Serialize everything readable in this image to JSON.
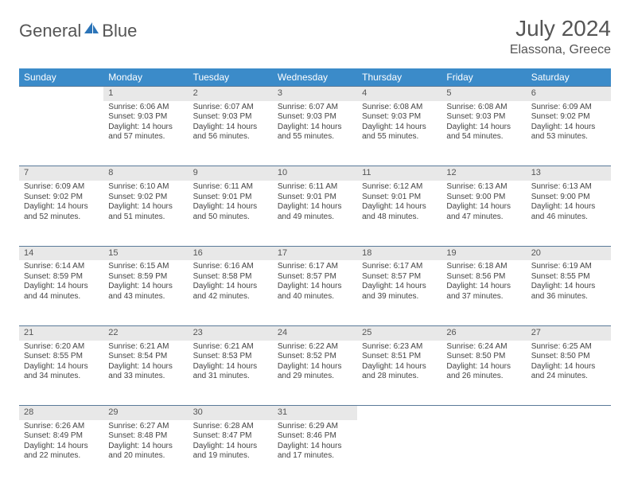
{
  "logo": {
    "text1": "General",
    "text2": "Blue"
  },
  "title": "July 2024",
  "location": "Elassona, Greece",
  "colors": {
    "header_bg": "#3b8bc9",
    "header_fg": "#ffffff",
    "daynum_bg": "#e8e8e8",
    "rule": "#5a7a99",
    "logo_accent": "#2b74b8"
  },
  "weekdays": [
    "Sunday",
    "Monday",
    "Tuesday",
    "Wednesday",
    "Thursday",
    "Friday",
    "Saturday"
  ],
  "weeks": [
    [
      null,
      {
        "n": "1",
        "sr": "6:06 AM",
        "ss": "9:03 PM",
        "dl": "14 hours and 57 minutes."
      },
      {
        "n": "2",
        "sr": "6:07 AM",
        "ss": "9:03 PM",
        "dl": "14 hours and 56 minutes."
      },
      {
        "n": "3",
        "sr": "6:07 AM",
        "ss": "9:03 PM",
        "dl": "14 hours and 55 minutes."
      },
      {
        "n": "4",
        "sr": "6:08 AM",
        "ss": "9:03 PM",
        "dl": "14 hours and 55 minutes."
      },
      {
        "n": "5",
        "sr": "6:08 AM",
        "ss": "9:03 PM",
        "dl": "14 hours and 54 minutes."
      },
      {
        "n": "6",
        "sr": "6:09 AM",
        "ss": "9:02 PM",
        "dl": "14 hours and 53 minutes."
      }
    ],
    [
      {
        "n": "7",
        "sr": "6:09 AM",
        "ss": "9:02 PM",
        "dl": "14 hours and 52 minutes."
      },
      {
        "n": "8",
        "sr": "6:10 AM",
        "ss": "9:02 PM",
        "dl": "14 hours and 51 minutes."
      },
      {
        "n": "9",
        "sr": "6:11 AM",
        "ss": "9:01 PM",
        "dl": "14 hours and 50 minutes."
      },
      {
        "n": "10",
        "sr": "6:11 AM",
        "ss": "9:01 PM",
        "dl": "14 hours and 49 minutes."
      },
      {
        "n": "11",
        "sr": "6:12 AM",
        "ss": "9:01 PM",
        "dl": "14 hours and 48 minutes."
      },
      {
        "n": "12",
        "sr": "6:13 AM",
        "ss": "9:00 PM",
        "dl": "14 hours and 47 minutes."
      },
      {
        "n": "13",
        "sr": "6:13 AM",
        "ss": "9:00 PM",
        "dl": "14 hours and 46 minutes."
      }
    ],
    [
      {
        "n": "14",
        "sr": "6:14 AM",
        "ss": "8:59 PM",
        "dl": "14 hours and 44 minutes."
      },
      {
        "n": "15",
        "sr": "6:15 AM",
        "ss": "8:59 PM",
        "dl": "14 hours and 43 minutes."
      },
      {
        "n": "16",
        "sr": "6:16 AM",
        "ss": "8:58 PM",
        "dl": "14 hours and 42 minutes."
      },
      {
        "n": "17",
        "sr": "6:17 AM",
        "ss": "8:57 PM",
        "dl": "14 hours and 40 minutes."
      },
      {
        "n": "18",
        "sr": "6:17 AM",
        "ss": "8:57 PM",
        "dl": "14 hours and 39 minutes."
      },
      {
        "n": "19",
        "sr": "6:18 AM",
        "ss": "8:56 PM",
        "dl": "14 hours and 37 minutes."
      },
      {
        "n": "20",
        "sr": "6:19 AM",
        "ss": "8:55 PM",
        "dl": "14 hours and 36 minutes."
      }
    ],
    [
      {
        "n": "21",
        "sr": "6:20 AM",
        "ss": "8:55 PM",
        "dl": "14 hours and 34 minutes."
      },
      {
        "n": "22",
        "sr": "6:21 AM",
        "ss": "8:54 PM",
        "dl": "14 hours and 33 minutes."
      },
      {
        "n": "23",
        "sr": "6:21 AM",
        "ss": "8:53 PM",
        "dl": "14 hours and 31 minutes."
      },
      {
        "n": "24",
        "sr": "6:22 AM",
        "ss": "8:52 PM",
        "dl": "14 hours and 29 minutes."
      },
      {
        "n": "25",
        "sr": "6:23 AM",
        "ss": "8:51 PM",
        "dl": "14 hours and 28 minutes."
      },
      {
        "n": "26",
        "sr": "6:24 AM",
        "ss": "8:50 PM",
        "dl": "14 hours and 26 minutes."
      },
      {
        "n": "27",
        "sr": "6:25 AM",
        "ss": "8:50 PM",
        "dl": "14 hours and 24 minutes."
      }
    ],
    [
      {
        "n": "28",
        "sr": "6:26 AM",
        "ss": "8:49 PM",
        "dl": "14 hours and 22 minutes."
      },
      {
        "n": "29",
        "sr": "6:27 AM",
        "ss": "8:48 PM",
        "dl": "14 hours and 20 minutes."
      },
      {
        "n": "30",
        "sr": "6:28 AM",
        "ss": "8:47 PM",
        "dl": "14 hours and 19 minutes."
      },
      {
        "n": "31",
        "sr": "6:29 AM",
        "ss": "8:46 PM",
        "dl": "14 hours and 17 minutes."
      },
      null,
      null,
      null
    ]
  ],
  "labels": {
    "sunrise": "Sunrise: ",
    "sunset": "Sunset: ",
    "daylight": "Daylight: "
  }
}
